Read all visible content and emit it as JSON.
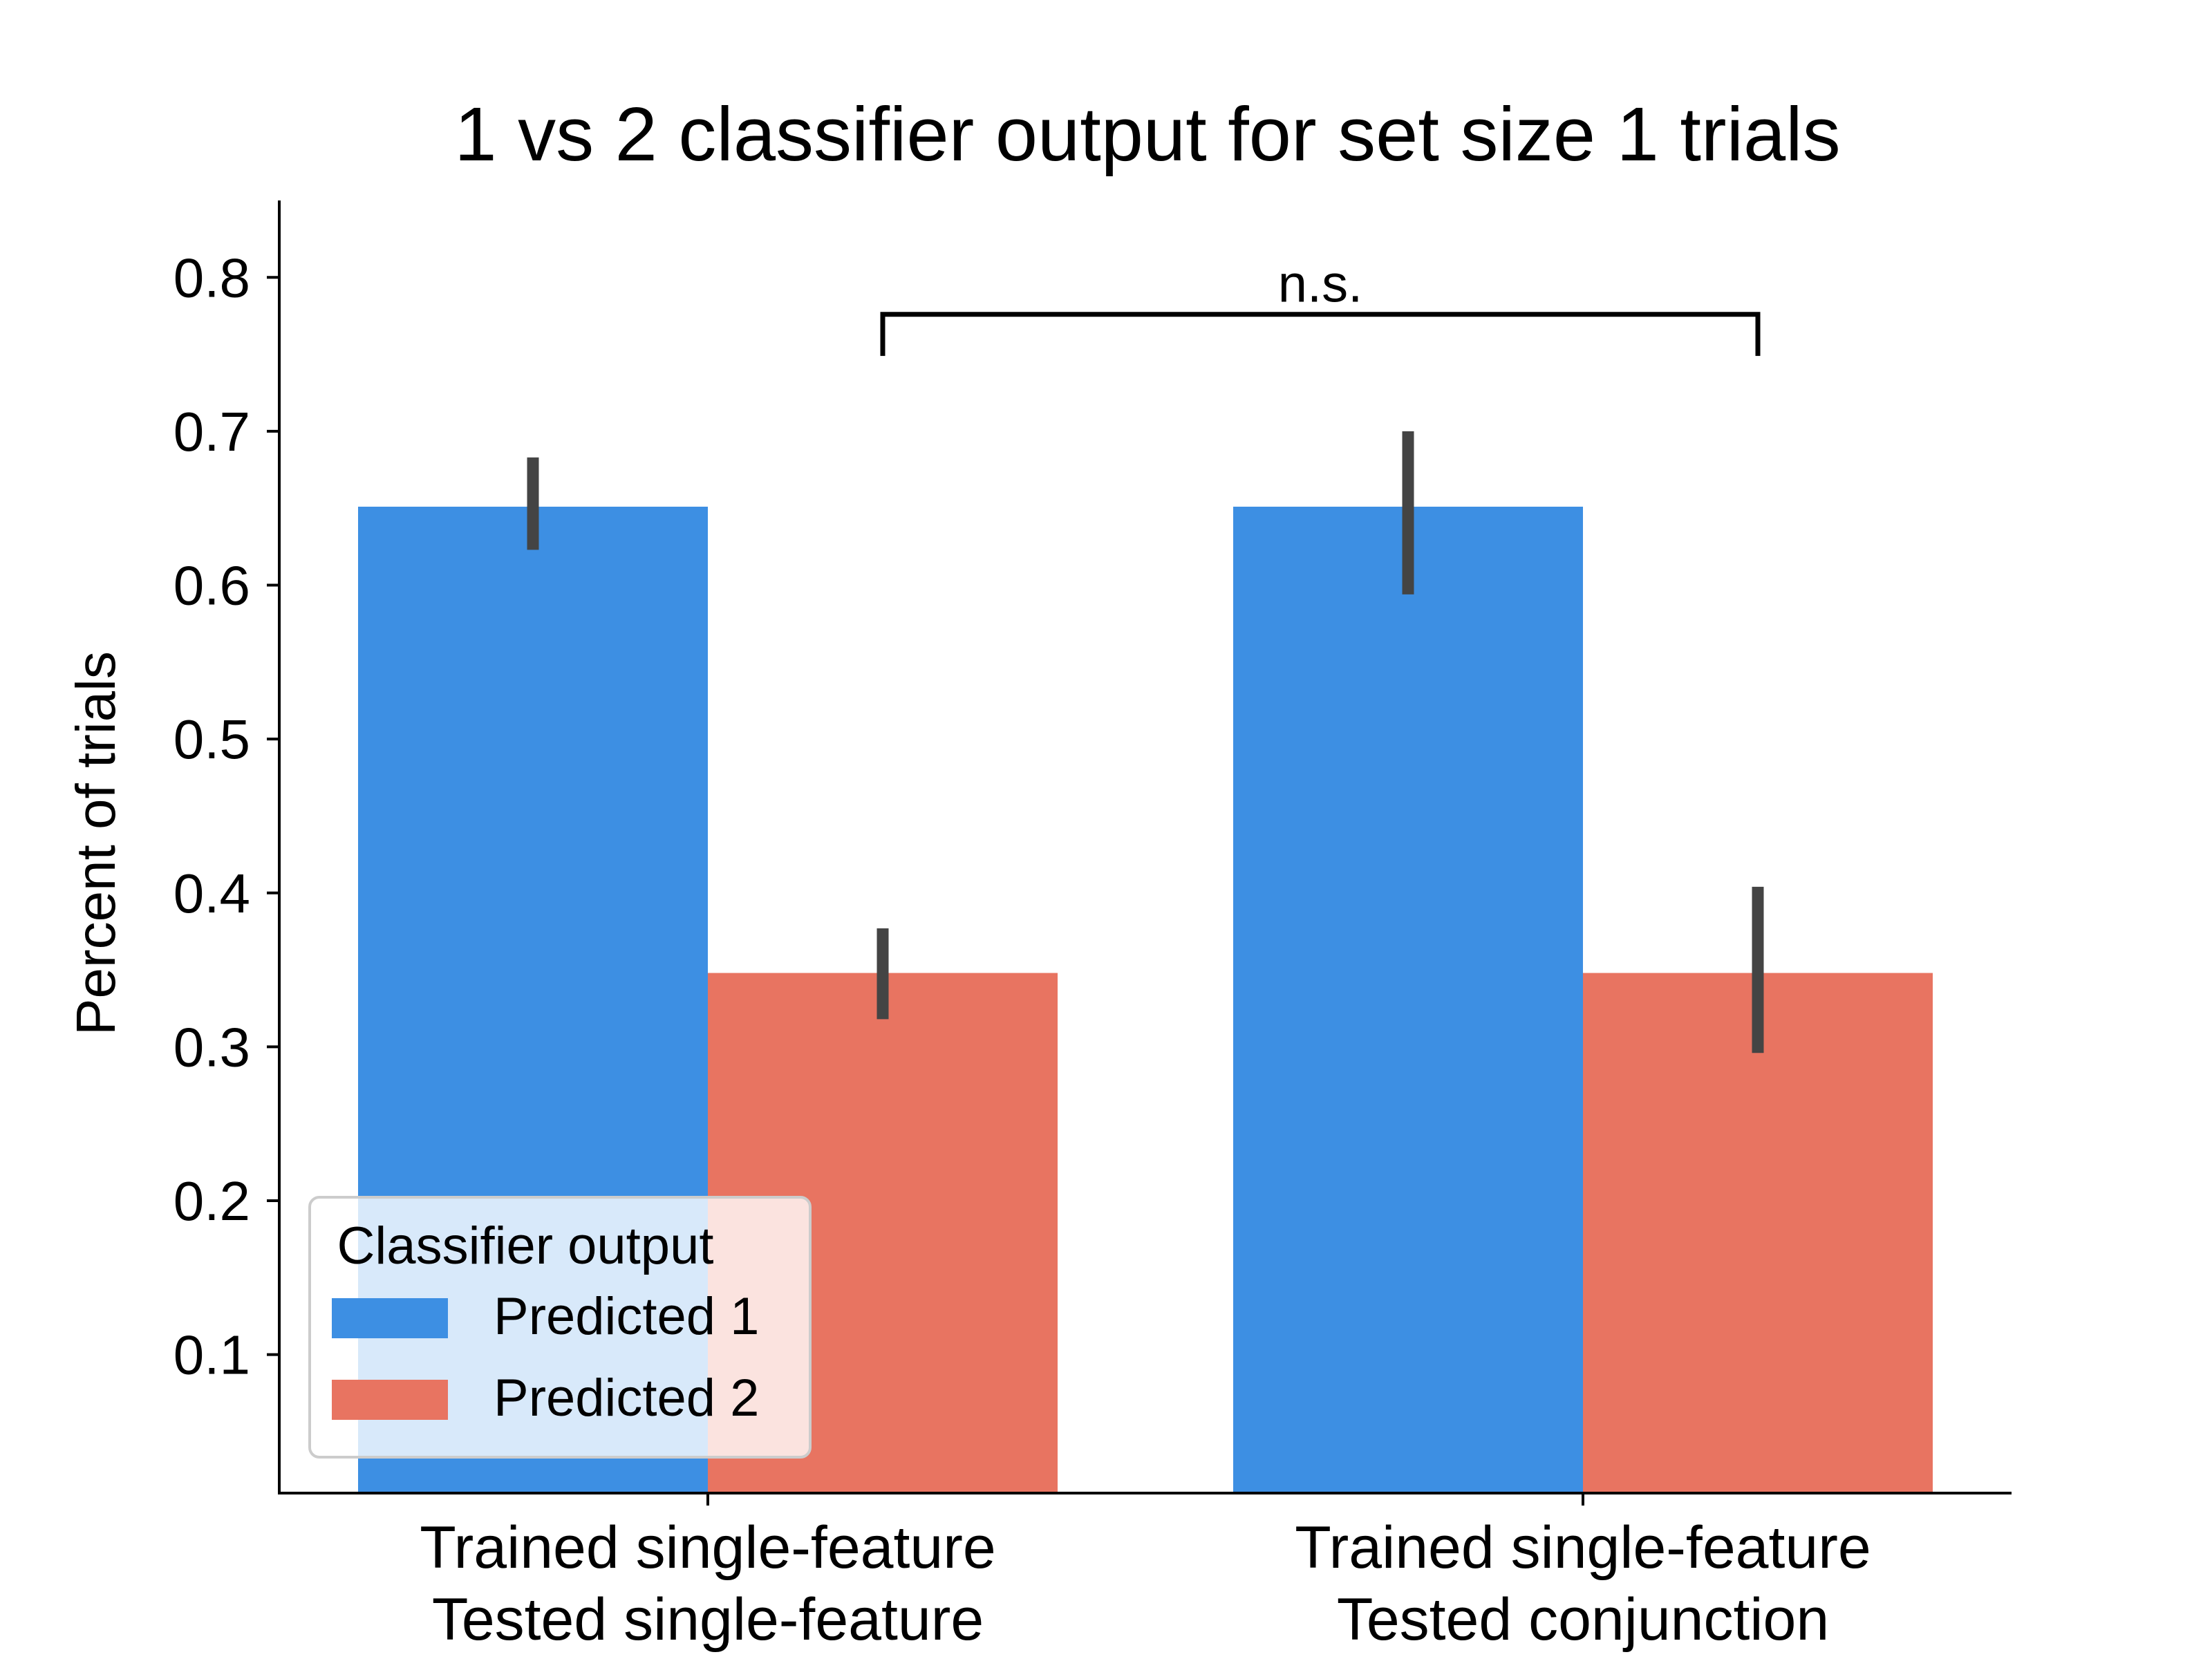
{
  "chart_data": {
    "type": "bar",
    "title": "1 vs 2 classifier output for set size 1 trials",
    "xlabel": "",
    "ylabel": "Percent of trials",
    "ylim": [
      0.01,
      0.85
    ],
    "yticks": [
      0.1,
      0.2,
      0.3,
      0.4,
      0.5,
      0.6,
      0.7,
      0.8
    ],
    "ytick_labels": [
      "0.1",
      "0.2",
      "0.3",
      "0.4",
      "0.5",
      "0.6",
      "0.7",
      "0.8"
    ],
    "categories": [
      [
        "Trained single-feature",
        "Tested single-feature"
      ],
      [
        "Trained single-feature",
        "Tested conjunction"
      ]
    ],
    "series": [
      {
        "name": "Predicted 1",
        "color": "#3d8fe3",
        "values": [
          0.651,
          0.651
        ],
        "err_low": [
          0.623,
          0.594
        ],
        "err_high": [
          0.683,
          0.7
        ]
      },
      {
        "name": "Predicted 2",
        "color": "#e87461",
        "values": [
          0.348,
          0.348
        ],
        "err_low": [
          0.318,
          0.296
        ],
        "err_high": [
          0.377,
          0.404
        ]
      }
    ],
    "errorbar_color": "#444444",
    "legend": {
      "title": "Classifier output",
      "position": "lower-left"
    },
    "annotation": {
      "text": "n.s.",
      "between_bars": [
        "Predicted 2 / Tested single-feature",
        "Predicted 2 / Tested conjunction"
      ],
      "bracket_top": 0.776,
      "bracket_bottom": 0.749
    },
    "grid": false,
    "spines": "left-bottom"
  }
}
